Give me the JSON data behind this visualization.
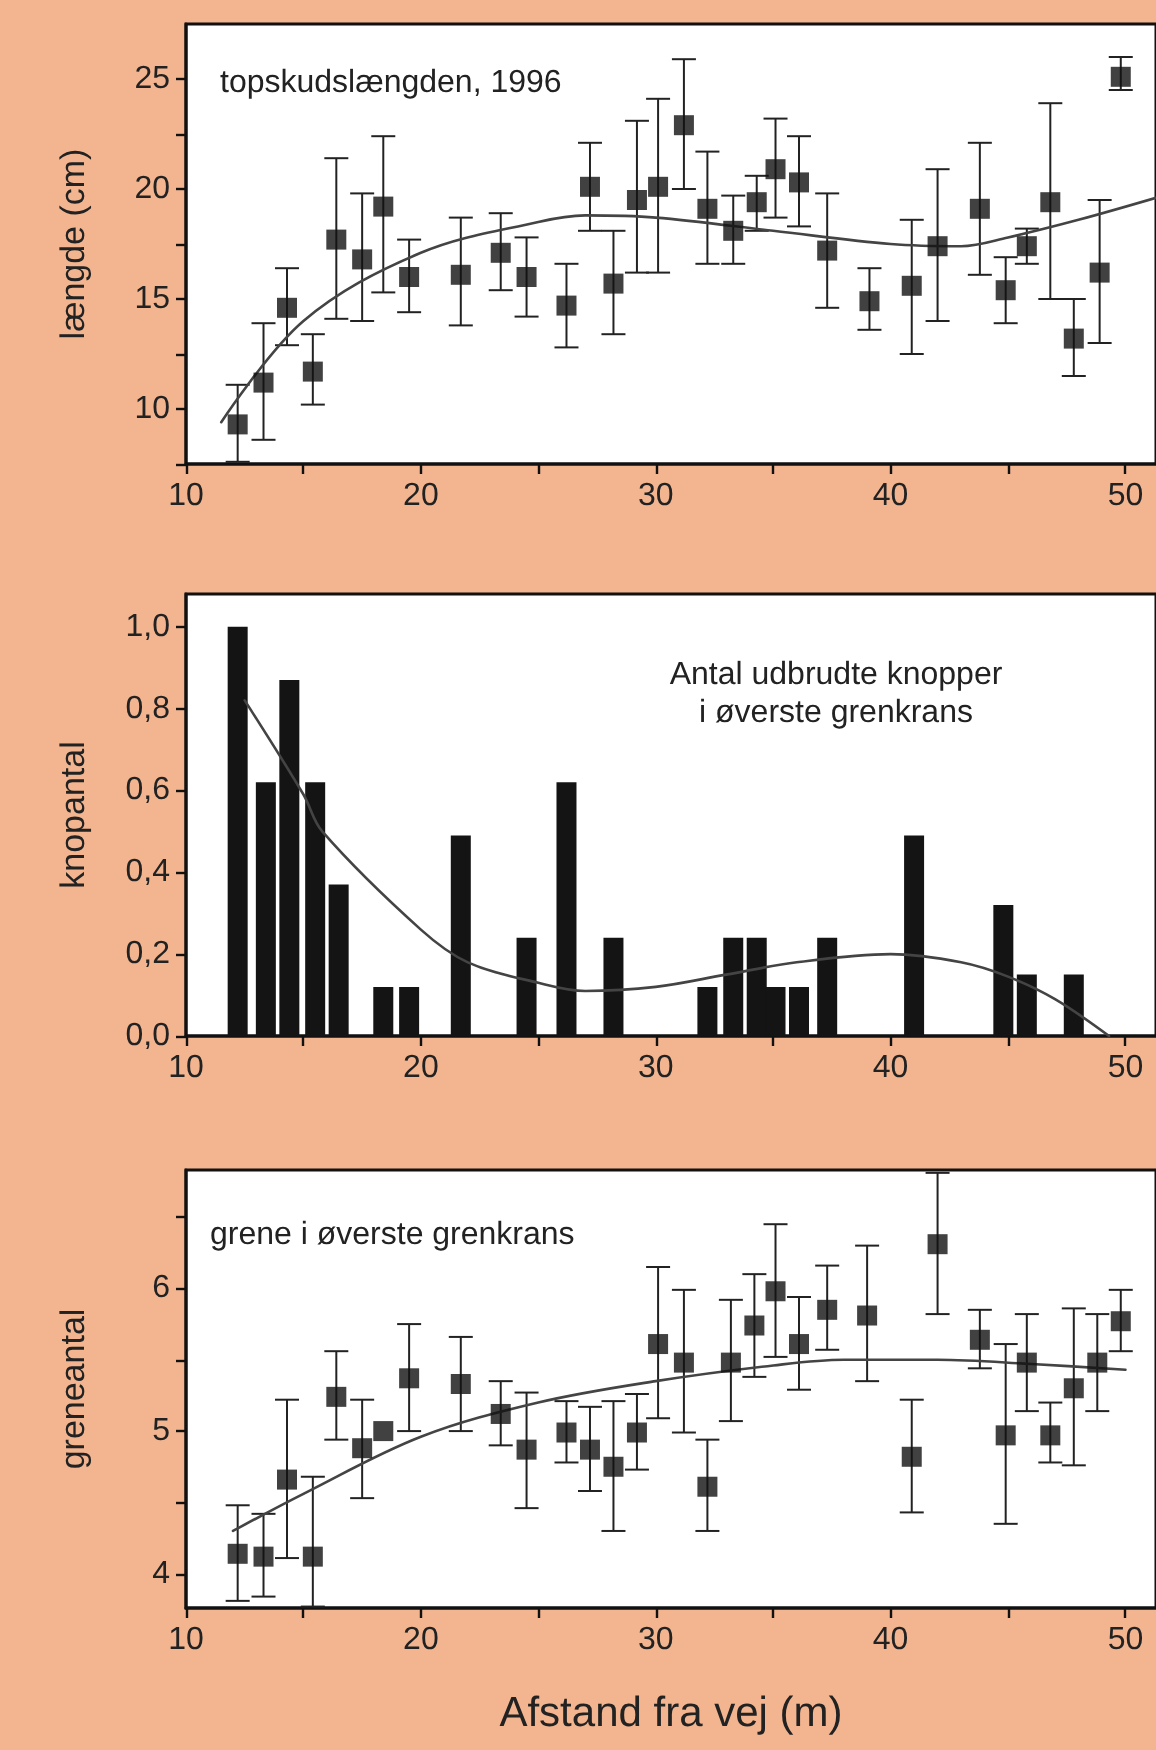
{
  "chart_data": [
    {
      "type": "scatter",
      "ylabel": "længde (cm)",
      "annotations": [
        "topskudslængden, 1996"
      ],
      "marker": "square",
      "grid": false,
      "xlim": [
        10,
        51.3
      ],
      "xticks": [
        10,
        {
          "value": 15,
          "label": null
        },
        20,
        {
          "value": 25,
          "label": null
        },
        30,
        {
          "value": 35,
          "label": null
        },
        40,
        {
          "value": 45,
          "label": null
        },
        50
      ],
      "ylim": [
        7.5,
        27.5
      ],
      "yticks": [
        {
          "value": 7.5,
          "label": null
        },
        10,
        {
          "value": 12.5,
          "label": null
        },
        15,
        {
          "value": 17.5,
          "label": null
        },
        20,
        {
          "value": 22.5,
          "label": null
        },
        25
      ],
      "series": [
        {
          "color": "#111111",
          "x": [
            12.2,
            13.3,
            14.3,
            15.4,
            16.4,
            17.5,
            18.4,
            19.5,
            21.7,
            23.4,
            24.5,
            26.2,
            27.2,
            28.2,
            29.2,
            30.1,
            31.2,
            32.2,
            33.3,
            34.3,
            35.1,
            36.1,
            37.3,
            39.1,
            40.9,
            42.0,
            43.8,
            44.9,
            45.8,
            46.8,
            47.8,
            48.9,
            49.8
          ],
          "values": [
            9.3,
            11.2,
            14.6,
            11.7,
            17.7,
            16.8,
            19.2,
            16.0,
            16.1,
            17.1,
            16.0,
            14.7,
            20.1,
            15.7,
            19.5,
            20.1,
            22.9,
            19.1,
            18.1,
            19.4,
            20.9,
            20.3,
            17.2,
            14.9,
            15.6,
            17.4,
            19.1,
            15.4,
            17.4,
            19.4,
            13.2,
            16.2,
            25.1
          ],
          "errors": [
            [
              7.6,
              11.1
            ],
            [
              8.6,
              13.9
            ],
            [
              12.9,
              16.4
            ],
            [
              10.2,
              13.4
            ],
            [
              14.1,
              21.4
            ],
            [
              14.0,
              19.8
            ],
            [
              15.3,
              22.4
            ],
            [
              14.4,
              17.7
            ],
            [
              13.8,
              18.7
            ],
            [
              15.4,
              18.9
            ],
            [
              14.2,
              17.8
            ],
            [
              12.8,
              16.6
            ],
            [
              18.1,
              22.1
            ],
            [
              13.4,
              18.1
            ],
            [
              16.2,
              23.1
            ],
            [
              16.2,
              24.1
            ],
            [
              20.0,
              25.9
            ],
            [
              16.6,
              21.7
            ],
            [
              16.6,
              19.7
            ],
            [
              18.1,
              20.6
            ],
            [
              18.7,
              23.2
            ],
            [
              18.3,
              22.4
            ],
            [
              14.6,
              19.8
            ],
            [
              13.6,
              16.4
            ],
            [
              12.5,
              18.6
            ],
            [
              14.0,
              20.9
            ],
            [
              16.1,
              22.1
            ],
            [
              13.9,
              16.9
            ],
            [
              16.6,
              18.2
            ],
            [
              15.0,
              23.9
            ],
            [
              11.5,
              15.0
            ],
            [
              13.0,
              19.5
            ],
            [
              24.5,
              26.0
            ]
          ]
        },
        {
          "type": "line",
          "color": "#444444",
          "marker": "none",
          "x": [
            11.5,
            15,
            20,
            25,
            27,
            30,
            35,
            40,
            43,
            45,
            48,
            51.3
          ],
          "values": [
            9.4,
            14.0,
            17.1,
            18.5,
            18.8,
            18.7,
            18.1,
            17.5,
            17.4,
            17.8,
            18.6,
            19.6
          ]
        }
      ]
    },
    {
      "type": "bar",
      "ylabel": "knopantal",
      "annotations": [
        "Antal udbrudte knopper\ni øverste grenkrans"
      ],
      "grid": false,
      "xlim": [
        10,
        51.3
      ],
      "xticks": [
        10,
        {
          "value": 15,
          "label": null
        },
        20,
        {
          "value": 25,
          "label": null
        },
        30,
        {
          "value": 35,
          "label": null
        },
        40,
        {
          "value": 45,
          "label": null
        },
        50
      ],
      "ylim": [
        0,
        1.08
      ],
      "yticks": [
        {
          "value": 0,
          "label": "0,0"
        },
        {
          "value": 0.2,
          "label": "0,2"
        },
        {
          "value": 0.4,
          "label": "0,4"
        },
        {
          "value": 0.6,
          "label": "0,6"
        },
        {
          "value": 0.8,
          "label": "0,8"
        },
        {
          "value": 1.0,
          "label": "1,0"
        }
      ],
      "series": [
        {
          "color": "#141414",
          "x": [
            12.2,
            13.4,
            14.4,
            15.5,
            16.5,
            18.4,
            19.5,
            21.7,
            24.5,
            26.2,
            28.2,
            32.2,
            33.3,
            34.3,
            35.1,
            36.1,
            37.3,
            41.0,
            44.8,
            45.8,
            47.8
          ],
          "values": [
            1.0,
            0.62,
            0.87,
            0.62,
            0.37,
            0.12,
            0.12,
            0.49,
            0.24,
            0.62,
            0.24,
            0.12,
            0.24,
            0.24,
            0.12,
            0.12,
            0.24,
            0.49,
            0.32,
            0.15,
            0.15
          ]
        },
        {
          "type": "line",
          "color": "#444444",
          "marker": "none",
          "x": [
            12.5,
            15,
            15.8,
            20,
            22,
            25,
            27,
            30,
            33,
            36,
            40,
            43,
            45,
            47,
            49.3
          ],
          "values": [
            0.82,
            0.59,
            0.5,
            0.26,
            0.18,
            0.13,
            0.11,
            0.12,
            0.15,
            0.18,
            0.2,
            0.18,
            0.145,
            0.09,
            0
          ]
        }
      ]
    },
    {
      "type": "scatter",
      "ylabel": "greneantal",
      "xlabel": "Afstand fra vej (m)",
      "annotations": [
        "grene i øverste grenkrans"
      ],
      "marker": "square",
      "grid": false,
      "xlim": [
        10,
        51.3
      ],
      "xticks": [
        10,
        {
          "value": 15,
          "label": null
        },
        20,
        {
          "value": 25,
          "label": null
        },
        30,
        {
          "value": 35,
          "label": null
        },
        40,
        {
          "value": 45,
          "label": null
        },
        50
      ],
      "ylim": [
        3.76,
        6.83
      ],
      "yticks": [
        4,
        {
          "value": 4.5,
          "label": null
        },
        5,
        {
          "value": 5.5,
          "label": null
        },
        6,
        {
          "value": 6.5,
          "label": null
        }
      ],
      "series": [
        {
          "color": "#111111",
          "x": [
            12.2,
            13.3,
            14.3,
            15.4,
            16.4,
            17.5,
            18.4,
            19.5,
            21.7,
            23.4,
            24.5,
            26.2,
            27.2,
            28.2,
            29.2,
            30.1,
            31.2,
            32.2,
            33.2,
            34.2,
            35.1,
            36.1,
            37.3,
            39.0,
            40.9,
            42.0,
            43.8,
            44.9,
            45.8,
            46.8,
            47.8,
            48.8,
            49.8
          ],
          "values": [
            4.14,
            4.12,
            4.66,
            4.12,
            5.24,
            4.88,
            5.0,
            5.37,
            5.33,
            5.12,
            4.87,
            4.99,
            4.87,
            4.75,
            4.99,
            5.61,
            5.48,
            4.61,
            5.48,
            5.74,
            5.98,
            5.61,
            5.85,
            5.81,
            4.82,
            6.31,
            5.64,
            4.97,
            5.48,
            4.97,
            5.3,
            5.48,
            5.77
          ],
          "errors": [
            [
              3.81,
              4.48
            ],
            [
              3.84,
              4.42
            ],
            [
              4.11,
              5.22
            ],
            [
              3.77,
              4.68
            ],
            [
              4.94,
              5.56
            ],
            [
              4.53,
              5.22
            ],
            null,
            [
              5.0,
              5.75
            ],
            [
              5.0,
              5.66
            ],
            [
              4.9,
              5.35
            ],
            [
              4.46,
              5.27
            ],
            [
              4.78,
              5.21
            ],
            [
              4.58,
              5.17
            ],
            [
              4.3,
              5.21
            ],
            [
              4.73,
              5.26
            ],
            [
              5.09,
              6.15
            ],
            [
              4.99,
              5.99
            ],
            [
              4.3,
              4.94
            ],
            [
              5.07,
              5.92
            ],
            [
              5.38,
              6.1
            ],
            [
              5.52,
              6.45
            ],
            [
              5.29,
              5.94
            ],
            [
              5.57,
              6.16
            ],
            [
              5.35,
              6.3
            ],
            [
              4.43,
              5.22
            ],
            [
              5.82,
              6.81
            ],
            [
              5.44,
              5.85
            ],
            [
              4.35,
              5.61
            ],
            [
              5.14,
              5.82
            ],
            [
              4.78,
              5.2
            ],
            [
              4.76,
              5.86
            ],
            [
              5.14,
              5.82
            ],
            [
              5.56,
              5.99
            ]
          ]
        },
        {
          "type": "line",
          "color": "#444444",
          "marker": "none",
          "x": [
            12,
            15,
            20,
            25,
            30,
            35,
            38,
            42,
            46,
            50
          ],
          "values": [
            4.3,
            4.56,
            4.96,
            5.2,
            5.35,
            5.46,
            5.5,
            5.5,
            5.47,
            5.43
          ]
        }
      ]
    }
  ]
}
